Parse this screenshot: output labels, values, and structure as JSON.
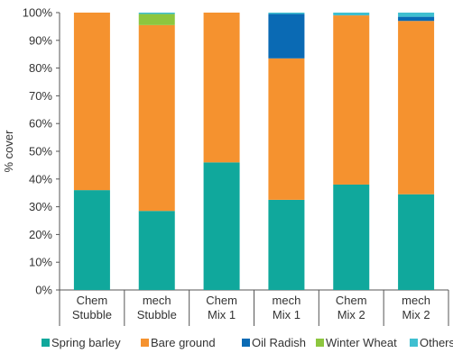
{
  "chart_data": {
    "type": "bar",
    "stacked": true,
    "ylabel": "% cover",
    "ylim": [
      0,
      100
    ],
    "yticks": [
      "0%",
      "10%",
      "20%",
      "30%",
      "40%",
      "50%",
      "60%",
      "70%",
      "80%",
      "90%",
      "100%"
    ],
    "categories": [
      [
        "Chem",
        "Stubble"
      ],
      [
        "mech",
        "Stubble"
      ],
      [
        "Chem",
        "Mix 1"
      ],
      [
        "mech",
        "Mix 1"
      ],
      [
        "Chem",
        "Mix 2"
      ],
      [
        "mech",
        "Mix 2"
      ]
    ],
    "series": [
      {
        "name": "Spring barley",
        "color": "#10a89c",
        "values": [
          36,
          28.5,
          46,
          32.5,
          38,
          34.5
        ]
      },
      {
        "name": "Bare ground",
        "color": "#f5922f",
        "values": [
          64,
          67,
          54,
          51,
          61,
          62.5
        ]
      },
      {
        "name": "Oil Radish",
        "color": "#0a6ab4",
        "values": [
          0,
          0,
          0,
          16,
          0,
          1.5
        ]
      },
      {
        "name": "Winter Wheat",
        "color": "#8dc63f",
        "values": [
          0,
          4,
          0,
          0,
          0,
          0
        ]
      },
      {
        "name": "Others",
        "color": "#3fbfd0",
        "values": [
          0,
          0.5,
          0,
          0.5,
          1,
          1.5
        ]
      }
    ],
    "grid": false,
    "legend_position": "bottom"
  }
}
